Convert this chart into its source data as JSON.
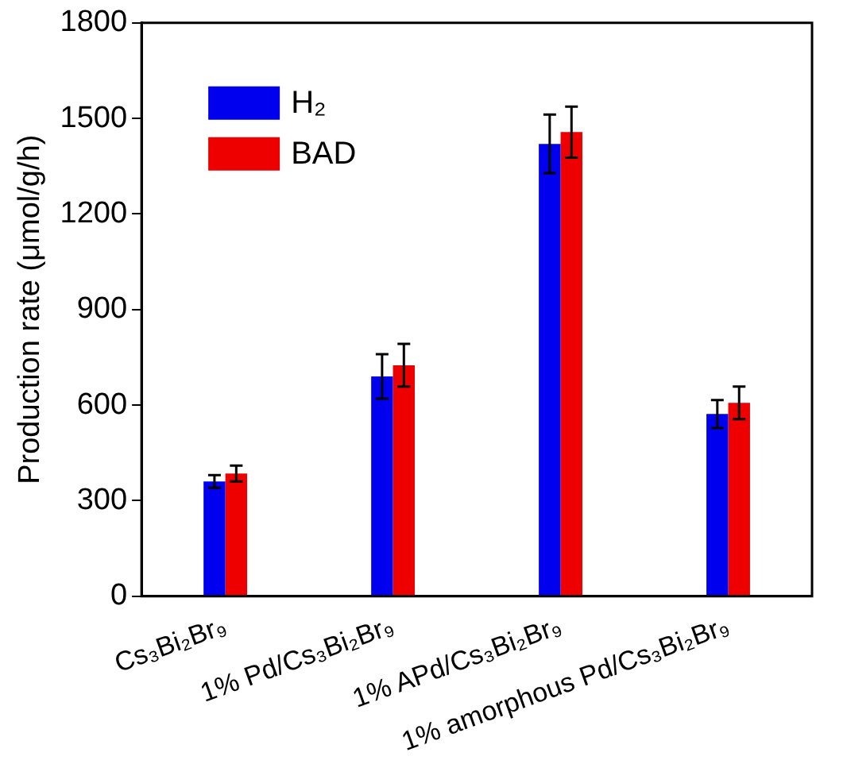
{
  "chart_data": {
    "type": "bar",
    "ylabel": "Production rate (μmol/g/h)",
    "categories": [
      "Cs₃Bi₂Br₉",
      "1% Pd/Cs₃Bi₂Br₉",
      "1% APd/Cs₃Bi₂Br₉",
      "1% amorphous Pd/Cs₃Bi₂Br₉"
    ],
    "series": [
      {
        "name": "H₂",
        "color": "#0000ee",
        "values": [
          360,
          690,
          1420,
          572
        ],
        "errors": [
          20,
          70,
          92,
          44
        ]
      },
      {
        "name": "BAD",
        "color": "#ee0000",
        "values": [
          385,
          725,
          1457,
          607
        ],
        "errors": [
          25,
          67,
          80,
          51
        ]
      }
    ],
    "ylim": [
      0,
      1800
    ],
    "yticks": [
      0,
      300,
      600,
      900,
      1200,
      1500,
      1800
    ],
    "grid": false,
    "legend": "top left"
  }
}
